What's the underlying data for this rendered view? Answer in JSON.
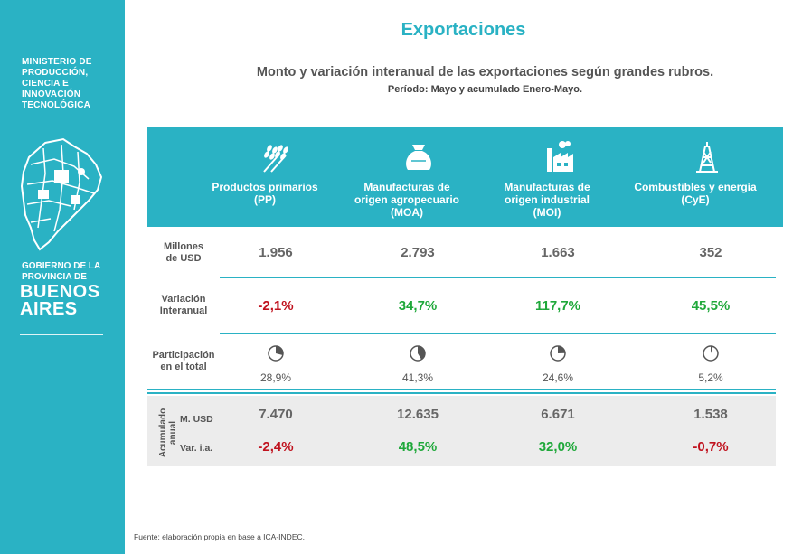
{
  "sidebar": {
    "ministry": "MINISTERIO DE\nPRODUCCIÓN,\nCIENCIA E\nINNOVACIÓN\nTECNOLÓGICA",
    "government": "GOBIERNO DE LA\nPROVINCIA DE",
    "province": "BUENOS\nAIRES"
  },
  "title": "Exportaciones",
  "subtitle": "Monto y variación interanual de las exportaciones según grandes rubros.",
  "period": "Período: Mayo y acumulado Enero-Mayo.",
  "categories": [
    {
      "label": "Productos primarios\n(PP)",
      "icon": "wheat-icon"
    },
    {
      "label": "Manufacturas de\norigen agropecuario\n(MOA)",
      "icon": "sack-icon"
    },
    {
      "label": "Manufacturas de\norigen industrial\n(MOI)",
      "icon": "factory-icon"
    },
    {
      "label": "Combustibles y energía\n(CyE)",
      "icon": "oil-rig-icon"
    }
  ],
  "rows": {
    "millones": {
      "label": "Millones\nde USD",
      "values": [
        "1.956",
        "2.793",
        "1.663",
        "352"
      ]
    },
    "variacion": {
      "label": "Variación\nInteranual",
      "values": [
        "-2,1%",
        "34,7%",
        "117,7%",
        "45,5%"
      ]
    },
    "participacion": {
      "label": "Participación\nen el total",
      "values": [
        "28,9%",
        "41,3%",
        "24,6%",
        "5,2%"
      ],
      "shares": [
        0.289,
        0.413,
        0.246,
        0.052
      ]
    }
  },
  "annual": {
    "side_label": "Acumulado\nanual",
    "musd_label": "M. USD",
    "var_label": "Var. i.a.",
    "musd_values": [
      "7.470",
      "12.635",
      "6.671",
      "1.538"
    ],
    "var_values": [
      "-2,4%",
      "48,5%",
      "32,0%",
      "-0,7%"
    ]
  },
  "colors": {
    "accent": "#2ab2c4",
    "negative": "#c0121e",
    "positive": "#1fa83a"
  },
  "footer": "Fuente: elaboración propia en base a ICA-INDEC."
}
